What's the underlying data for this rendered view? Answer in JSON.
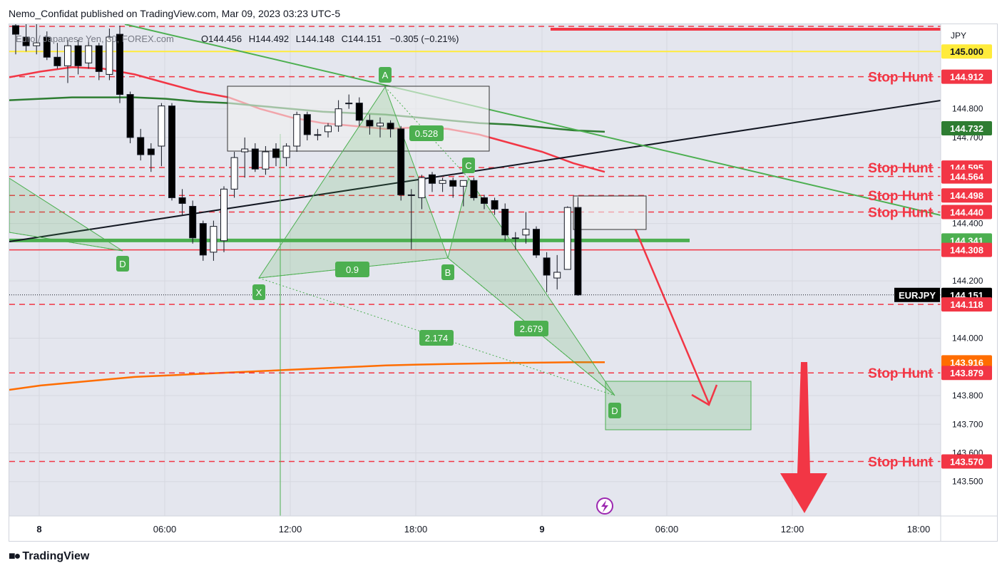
{
  "header": {
    "published_text": "Nemo_Confidat published on TradingView.com, Mar 09, 2023 03:23 UTC-5"
  },
  "legend": {
    "symbol": "Euro / Japanese Yen, 30, FOREX.com",
    "open_label": "O",
    "open": "144.456",
    "high_label": "H",
    "high": "144.492",
    "low_label": "L",
    "low": "144.148",
    "close_label": "C",
    "close": "144.151",
    "change": "−0.305 (−0.21%)"
  },
  "footer": {
    "brand": "TradingView"
  },
  "chart_data": {
    "type": "candlestick",
    "symbol": "EURJPY",
    "timeframe": "30",
    "currency": "JPY",
    "y_range": [
      143.38,
      145.095
    ],
    "y_ticks": [
      "145.000",
      "144.800",
      "144.700",
      "144.400",
      "144.200",
      "144.000",
      "143.800",
      "143.700",
      "143.600",
      "143.500"
    ],
    "x_ticks": [
      "8",
      "06:00",
      "12:00",
      "18:00",
      "9",
      "06:00",
      "12:00",
      "18:00"
    ],
    "candles": [
      {
        "o": 145.09,
        "h": 145.12,
        "l": 144.99,
        "c": 145.06
      },
      {
        "o": 145.05,
        "h": 145.1,
        "l": 145.0,
        "c": 145.02
      },
      {
        "o": 145.02,
        "h": 145.1,
        "l": 144.99,
        "c": 145.03
      },
      {
        "o": 145.05,
        "h": 145.07,
        "l": 144.97,
        "c": 144.98
      },
      {
        "o": 144.98,
        "h": 145.03,
        "l": 144.94,
        "c": 144.95
      },
      {
        "o": 144.95,
        "h": 145.04,
        "l": 144.89,
        "c": 145.02
      },
      {
        "o": 145.02,
        "h": 145.04,
        "l": 144.92,
        "c": 144.95
      },
      {
        "o": 144.96,
        "h": 145.04,
        "l": 144.94,
        "c": 145.02
      },
      {
        "o": 145.02,
        "h": 145.03,
        "l": 144.9,
        "c": 144.93
      },
      {
        "o": 144.92,
        "h": 145.08,
        "l": 144.9,
        "c": 145.05
      },
      {
        "o": 145.06,
        "h": 145.09,
        "l": 144.82,
        "c": 144.85
      },
      {
        "o": 144.85,
        "h": 144.86,
        "l": 144.68,
        "c": 144.7
      },
      {
        "o": 144.7,
        "h": 144.73,
        "l": 144.62,
        "c": 144.64
      },
      {
        "o": 144.66,
        "h": 144.68,
        "l": 144.58,
        "c": 144.64
      },
      {
        "o": 144.67,
        "h": 144.82,
        "l": 144.6,
        "c": 144.81
      },
      {
        "o": 144.81,
        "h": 144.82,
        "l": 144.48,
        "c": 144.49
      },
      {
        "o": 144.49,
        "h": 144.52,
        "l": 144.43,
        "c": 144.47
      },
      {
        "o": 144.46,
        "h": 144.48,
        "l": 144.33,
        "c": 144.35
      },
      {
        "o": 144.4,
        "h": 144.41,
        "l": 144.27,
        "c": 144.29
      },
      {
        "o": 144.3,
        "h": 144.41,
        "l": 144.27,
        "c": 144.39
      },
      {
        "o": 144.34,
        "h": 144.53,
        "l": 144.3,
        "c": 144.52
      },
      {
        "o": 144.52,
        "h": 144.65,
        "l": 144.49,
        "c": 144.63
      },
      {
        "o": 144.65,
        "h": 144.7,
        "l": 144.56,
        "c": 144.66
      },
      {
        "o": 144.66,
        "h": 144.68,
        "l": 144.58,
        "c": 144.59
      },
      {
        "o": 144.59,
        "h": 144.67,
        "l": 144.57,
        "c": 144.65
      },
      {
        "o": 144.66,
        "h": 144.68,
        "l": 144.6,
        "c": 144.63
      },
      {
        "o": 144.63,
        "h": 144.68,
        "l": 144.6,
        "c": 144.67
      },
      {
        "o": 144.67,
        "h": 144.79,
        "l": 144.65,
        "c": 144.78
      },
      {
        "o": 144.78,
        "h": 144.79,
        "l": 144.69,
        "c": 144.71
      },
      {
        "o": 144.71,
        "h": 144.73,
        "l": 144.69,
        "c": 144.71
      },
      {
        "o": 144.72,
        "h": 144.75,
        "l": 144.7,
        "c": 144.74
      },
      {
        "o": 144.74,
        "h": 144.83,
        "l": 144.72,
        "c": 144.8
      },
      {
        "o": 144.82,
        "h": 144.85,
        "l": 144.8,
        "c": 144.82
      },
      {
        "o": 144.82,
        "h": 144.84,
        "l": 144.74,
        "c": 144.76
      },
      {
        "o": 144.76,
        "h": 144.78,
        "l": 144.71,
        "c": 144.74
      },
      {
        "o": 144.74,
        "h": 144.77,
        "l": 144.7,
        "c": 144.75
      },
      {
        "o": 144.75,
        "h": 144.76,
        "l": 144.7,
        "c": 144.73
      },
      {
        "o": 144.73,
        "h": 144.74,
        "l": 144.48,
        "c": 144.5
      },
      {
        "o": 144.5,
        "h": 144.52,
        "l": 144.31,
        "c": 144.5
      },
      {
        "o": 144.49,
        "h": 144.57,
        "l": 144.45,
        "c": 144.56
      },
      {
        "o": 144.57,
        "h": 144.58,
        "l": 144.51,
        "c": 144.54
      },
      {
        "o": 144.54,
        "h": 144.56,
        "l": 144.51,
        "c": 144.55
      },
      {
        "o": 144.55,
        "h": 144.56,
        "l": 144.49,
        "c": 144.53
      },
      {
        "o": 144.53,
        "h": 144.55,
        "l": 144.46,
        "c": 144.55
      },
      {
        "o": 144.55,
        "h": 144.56,
        "l": 144.48,
        "c": 144.49
      },
      {
        "o": 144.49,
        "h": 144.5,
        "l": 144.45,
        "c": 144.47
      },
      {
        "o": 144.48,
        "h": 144.49,
        "l": 144.43,
        "c": 144.45
      },
      {
        "o": 144.45,
        "h": 144.47,
        "l": 144.34,
        "c": 144.36
      },
      {
        "o": 144.35,
        "h": 144.37,
        "l": 144.31,
        "c": 144.35
      },
      {
        "o": 144.36,
        "h": 144.44,
        "l": 144.33,
        "c": 144.38
      },
      {
        "o": 144.38,
        "h": 144.39,
        "l": 144.28,
        "c": 144.29
      },
      {
        "o": 144.28,
        "h": 144.3,
        "l": 144.16,
        "c": 144.22
      },
      {
        "o": 144.21,
        "h": 144.29,
        "l": 144.17,
        "c": 144.23
      },
      {
        "o": 144.24,
        "h": 144.46,
        "l": 144.24,
        "c": 144.456
      },
      {
        "o": 144.456,
        "h": 144.492,
        "l": 144.148,
        "c": 144.151
      }
    ],
    "moving_averages": [
      {
        "color": "#f23645",
        "values": [
          144.91,
          144.93,
          144.945,
          144.94,
          144.92,
          144.89,
          144.86,
          144.84,
          144.8,
          144.77,
          144.75,
          144.74,
          144.73,
          144.735,
          144.73,
          144.71,
          144.68,
          144.65,
          144.61,
          144.58
        ]
      },
      {
        "color": "#2e7d32",
        "values": [
          144.83,
          144.835,
          144.84,
          144.84,
          144.84,
          144.835,
          144.825,
          144.82,
          144.81,
          144.8,
          144.79,
          144.785,
          144.78,
          144.77,
          144.76,
          144.75,
          144.745,
          144.735,
          144.725,
          144.72
        ]
      },
      {
        "color": "#ff6d00",
        "values": [
          143.82,
          143.835,
          143.845,
          143.855,
          143.865,
          143.87,
          143.875,
          143.88,
          143.885,
          143.89,
          143.895,
          143.9,
          143.905,
          143.908,
          143.91,
          143.912,
          143.914,
          143.915,
          143.916,
          143.916
        ]
      }
    ],
    "horizontal_levels": [
      {
        "price": 145.0,
        "label": "145.000",
        "color": "#ffeb3b",
        "text_color": "#131722"
      },
      {
        "price": 144.912,
        "label": "144.912",
        "color": "#f23645",
        "text_color": "#ffffff",
        "note": "Stop Hunt"
      },
      {
        "price": 144.732,
        "label": "144.732",
        "color": "#2e7d32",
        "text_color": "#ffffff"
      },
      {
        "price": 144.595,
        "label": "144.595",
        "color": "#f23645",
        "text_color": "#ffffff",
        "note": "Stop Hunt"
      },
      {
        "price": 144.564,
        "label": "144.564",
        "color": "#f23645",
        "text_color": "#ffffff"
      },
      {
        "price": 144.498,
        "label": "144.498",
        "color": "#f23645",
        "text_color": "#ffffff",
        "note": "Stop Hunt"
      },
      {
        "price": 144.44,
        "label": "144.440",
        "color": "#f23645",
        "text_color": "#ffffff",
        "note": "Stop Hunt"
      },
      {
        "price": 144.341,
        "label": "144.341",
        "color": "#4caf50",
        "text_color": "#ffffff"
      },
      {
        "price": 144.308,
        "label": "144.308",
        "color": "#f23645",
        "text_color": "#ffffff"
      },
      {
        "price": 144.151,
        "label": "144.151",
        "color": "#000000",
        "text_color": "#ffffff",
        "tag": "EURJPY"
      },
      {
        "price": 144.118,
        "label": "144.118",
        "color": "#f23645",
        "text_color": "#ffffff"
      },
      {
        "price": 143.916,
        "label": "143.916",
        "color": "#ff6d00",
        "text_color": "#ffffff"
      },
      {
        "price": 143.879,
        "label": "143.879",
        "color": "#f23645",
        "text_color": "#ffffff",
        "note": "Stop Hunt"
      },
      {
        "price": 143.57,
        "label": "143.570",
        "color": "#f23645",
        "text_color": "#ffffff",
        "note": "Stop Hunt"
      }
    ],
    "pattern_labels": [
      "X",
      "A",
      "B",
      "C",
      "D",
      "D"
    ],
    "ratio_labels": [
      "0.528",
      "0.9",
      "2.174",
      "2.679"
    ],
    "colors": {
      "bull": "#ffffff",
      "bear": "#000000",
      "harmonic": "#4caf50",
      "stop": "#f23645"
    }
  }
}
